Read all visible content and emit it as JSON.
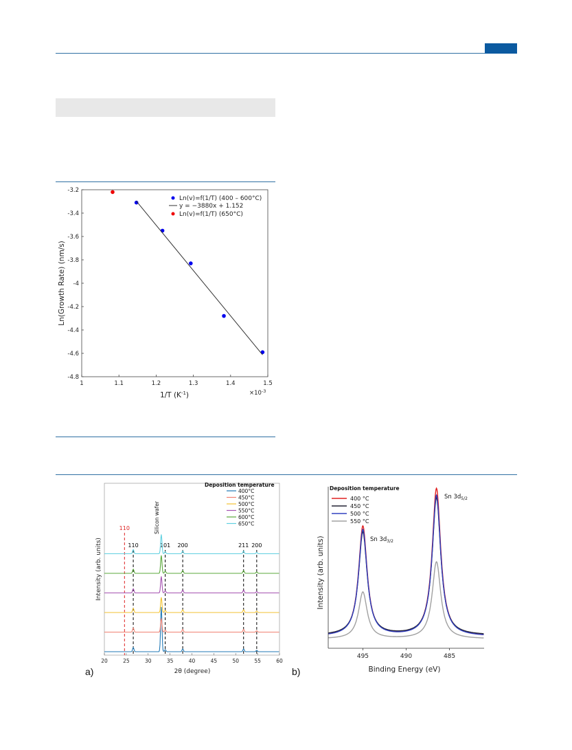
{
  "header": {
    "accent_color": "#0b5aa0",
    "rule_color": "#2e6fa3"
  },
  "figure_top": {
    "chart_data": {
      "type": "scatter",
      "xlabel": "1/T (K",
      "xlabel_sup": "-1",
      "xlabel_close": ")",
      "x_multiplier": "×10",
      "x_multiplier_sup": "-3",
      "ylabel": "Ln(Growth Rate) (nm/s)",
      "xlim": [
        1.0,
        1.5
      ],
      "ylim": [
        -4.8,
        -3.2
      ],
      "x_ticks": [
        "1",
        "1.1",
        "1.2",
        "1.3",
        "1.4",
        "1.5"
      ],
      "y_ticks": [
        "-3.2",
        "-3.4",
        "-3.6",
        "-3.8",
        "-4",
        "-4.2",
        "-4.4",
        "-4.6",
        "-4.8"
      ],
      "series": [
        {
          "name": "Ln(v)=f(1/T) (400 – 600°C)",
          "color": "#0000ee",
          "x": [
            1.147,
            1.217,
            1.293,
            1.382,
            1.486
          ],
          "y": [
            -3.31,
            -3.55,
            -3.83,
            -4.28,
            -4.59
          ]
        },
        {
          "name": "y = −3880x + 1.152",
          "color": "#333333",
          "kind": "fit",
          "x": [
            1.147,
            1.486
          ],
          "y": [
            -3.298,
            -4.613
          ]
        },
        {
          "name": "Ln(v)=f(1/T) (650°C)",
          "color": "#ee0000",
          "x": [
            1.083
          ],
          "y": [
            -3.22
          ]
        }
      ]
    }
  },
  "figure_bottom": {
    "panel_a": {
      "label": "a)",
      "chart_data": {
        "type": "line",
        "xlabel": "2θ (degree)",
        "ylabel": "Intensity (arb. units)",
        "xlim": [
          20,
          60
        ],
        "x_ticks": [
          "20",
          "25",
          "30",
          "35",
          "40",
          "45",
          "50",
          "55",
          "60"
        ],
        "legend_title": "Deposition temperature",
        "series": [
          {
            "name": "400°C",
            "color": "#1f77b4"
          },
          {
            "name": "450°C",
            "color": "#f08070"
          },
          {
            "name": "500°C",
            "color": "#f2c230"
          },
          {
            "name": "550°C",
            "color": "#a450b0"
          },
          {
            "name": "600°C",
            "color": "#5aa83a"
          },
          {
            "name": "650°C",
            "color": "#5fd0e0"
          }
        ],
        "peak_labels": [
          {
            "text": "110",
            "x": 24.6,
            "color": "#dd2222"
          },
          {
            "text": "110",
            "x": 26.6,
            "color": "#000000"
          },
          {
            "text": "101",
            "x": 33.9,
            "color": "#000000"
          },
          {
            "text": "200",
            "x": 37.9,
            "color": "#000000"
          },
          {
            "text": "211",
            "x": 51.8,
            "color": "#000000"
          },
          {
            "text": "200",
            "x": 54.8,
            "color": "#000000"
          }
        ],
        "substrate_label": "Silicon wafer",
        "substrate_x": 33.0
      }
    },
    "panel_b": {
      "label": "b)",
      "chart_data": {
        "type": "line",
        "xlabel": "Binding Energy (eV)",
        "ylabel": "Intensity (arb. units)",
        "xlim": [
          499,
          481
        ],
        "x_ticks": [
          "495",
          "490",
          "485"
        ],
        "legend_title": "Deposition temperature",
        "series": [
          {
            "name": "400 °C",
            "color": "#e02020"
          },
          {
            "name": "450 °C",
            "color": "#222233"
          },
          {
            "name": "500 °C",
            "color": "#3040c0"
          },
          {
            "name": "550 °C",
            "color": "#a0a0a0"
          }
        ],
        "peak_labels": [
          {
            "text": "Sn 3d",
            "sub": "3/2",
            "x": 495.0
          },
          {
            "text": "Sn 3d",
            "sub": "5/2",
            "x": 486.5
          }
        ]
      }
    }
  }
}
